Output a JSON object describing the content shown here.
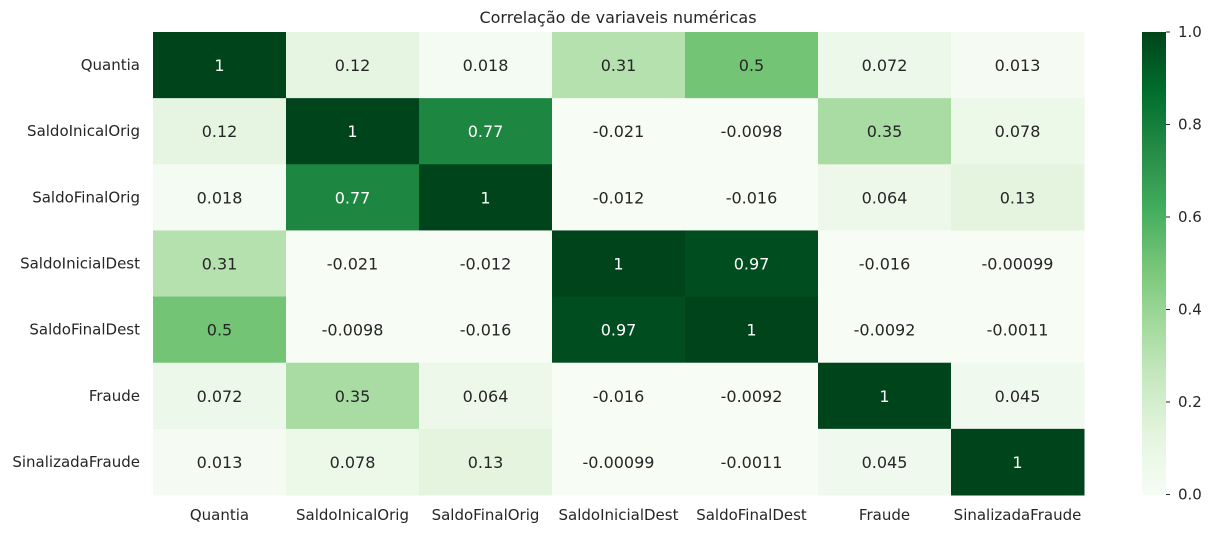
{
  "chart_data": {
    "type": "heatmap",
    "title": "Correlação de variaveis numéricas",
    "xlabel": "",
    "ylabel": "",
    "x_categories": [
      "Quantia",
      "SaldoInicalOrig",
      "SaldoFinalOrig",
      "SaldoInicialDest",
      "SaldoFinalDest",
      "Fraude",
      "SinalizadaFraude"
    ],
    "y_categories": [
      "Quantia",
      "SaldoInicalOrig",
      "SaldoFinalOrig",
      "SaldoInicialDest",
      "SaldoFinalDest",
      "Fraude",
      "SinalizadaFraude"
    ],
    "values": [
      [
        1,
        0.12,
        0.018,
        0.31,
        0.5,
        0.072,
        0.013
      ],
      [
        0.12,
        1,
        0.77,
        -0.021,
        -0.0098,
        0.35,
        0.078
      ],
      [
        0.018,
        0.77,
        1,
        -0.012,
        -0.016,
        0.064,
        0.13
      ],
      [
        0.31,
        -0.021,
        -0.012,
        1,
        0.97,
        -0.016,
        -0.00099
      ],
      [
        0.5,
        -0.0098,
        -0.016,
        0.97,
        1,
        -0.0092,
        -0.0011
      ],
      [
        0.072,
        0.35,
        0.064,
        -0.016,
        -0.0092,
        1,
        0.045
      ],
      [
        0.013,
        0.078,
        0.13,
        -0.00099,
        -0.0011,
        0.045,
        1
      ]
    ],
    "annotations": [
      [
        "1",
        "0.12",
        "0.018",
        "0.31",
        "0.5",
        "0.072",
        "0.013"
      ],
      [
        "0.12",
        "1",
        "0.77",
        "-0.021",
        "-0.0098",
        "0.35",
        "0.078"
      ],
      [
        "0.018",
        "0.77",
        "1",
        "-0.012",
        "-0.016",
        "0.064",
        "0.13"
      ],
      [
        "0.31",
        "-0.021",
        "-0.012",
        "1",
        "0.97",
        "-0.016",
        "-0.00099"
      ],
      [
        "0.5",
        "-0.0098",
        "-0.016",
        "0.97",
        "1",
        "-0.0092",
        "-0.0011"
      ],
      [
        "0.072",
        "0.35",
        "0.064",
        "-0.016",
        "-0.0092",
        "1",
        "0.045"
      ],
      [
        "0.013",
        "0.078",
        "0.13",
        "-0.00099",
        "-0.0011",
        "0.045",
        "1"
      ]
    ],
    "colormap": "Greens",
    "colormap_stops": [
      "#f7fcf5",
      "#e5f5e0",
      "#c7e9c0",
      "#a1d99b",
      "#74c476",
      "#41ab5d",
      "#238b45",
      "#006d2c",
      "#00441b"
    ],
    "vmin": -0.0011,
    "vmax": 1,
    "colorbar": {
      "ticks": [
        0.0,
        0.2,
        0.4,
        0.6,
        0.8,
        1.0
      ],
      "tick_labels": [
        "0.0",
        "0.2",
        "0.4",
        "0.6",
        "0.8",
        "1.0"
      ]
    },
    "text_color_light": "#ffffff",
    "text_color_dark": "#262626"
  }
}
